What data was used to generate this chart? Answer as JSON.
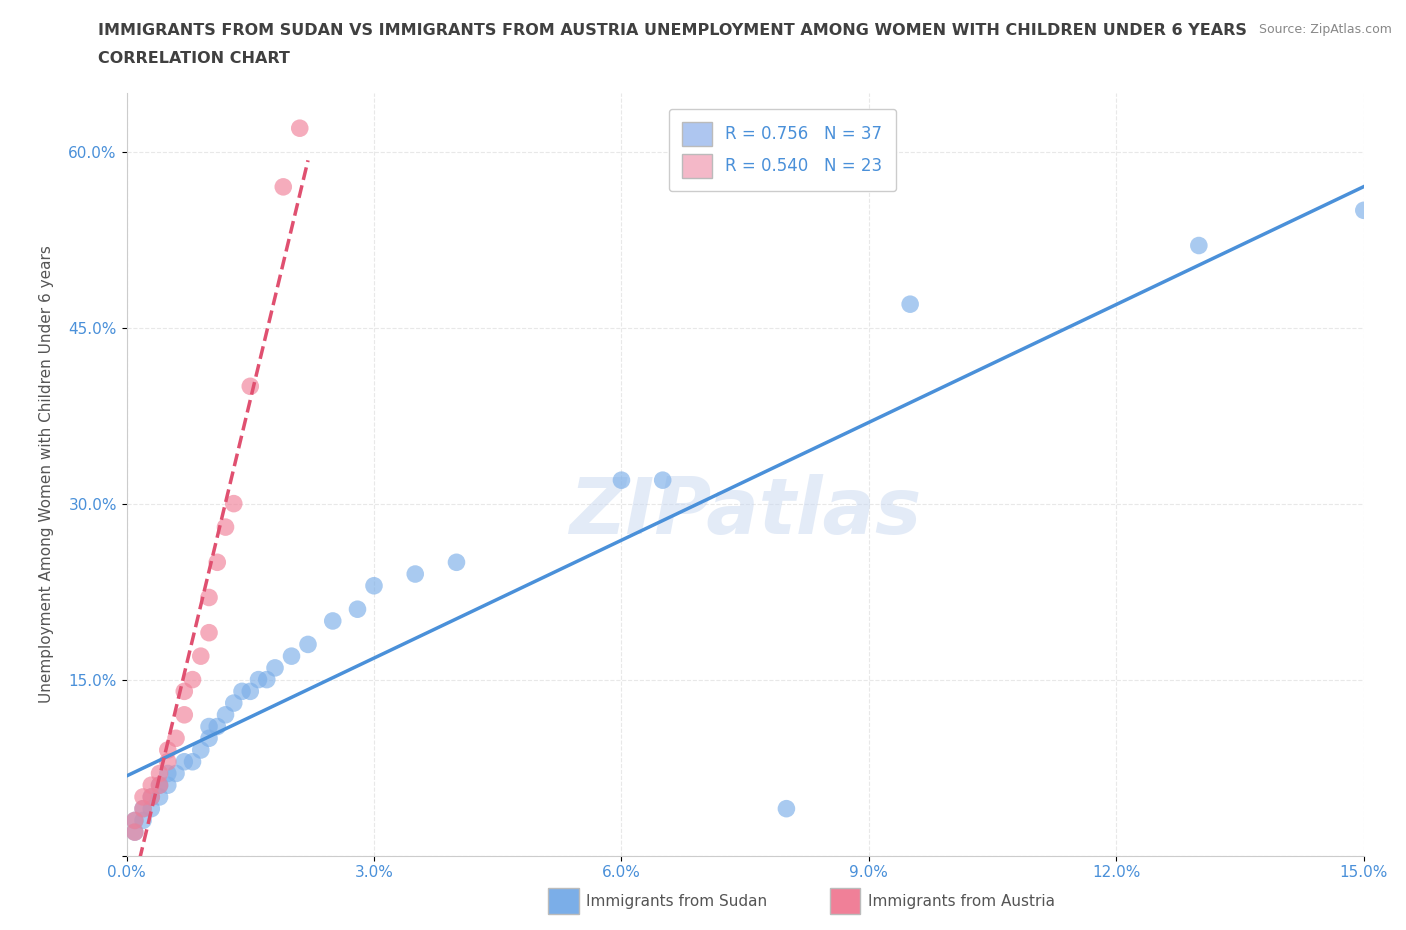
{
  "title_line1": "IMMIGRANTS FROM SUDAN VS IMMIGRANTS FROM AUSTRIA UNEMPLOYMENT AMONG WOMEN WITH CHILDREN UNDER 6 YEARS",
  "title_line2": "CORRELATION CHART",
  "source": "Source: ZipAtlas.com",
  "xlabel": "",
  "ylabel": "Unemployment Among Women with Children Under 6 years",
  "xlim": [
    0.0,
    0.15
  ],
  "ylim": [
    0.0,
    0.65
  ],
  "xticks": [
    0.0,
    0.03,
    0.06,
    0.09,
    0.12,
    0.15
  ],
  "yticks": [
    0.0,
    0.15,
    0.3,
    0.45,
    0.6
  ],
  "xticklabels": [
    "0.0%",
    "3.0%",
    "6.0%",
    "9.0%",
    "12.0%",
    "15.0%"
  ],
  "yticklabels": [
    "",
    "15.0%",
    "30.0%",
    "45.0%",
    "60.0%"
  ],
  "watermark": "ZIPatlas",
  "legend_items": [
    {
      "label": "R = 0.756   N = 37",
      "color": "#aec6f0"
    },
    {
      "label": "R = 0.540   N = 23",
      "color": "#f4b8c8"
    }
  ],
  "sudan_color": "#7baee8",
  "austria_color": "#f08098",
  "sudan_line_color": "#4a90d9",
  "austria_line_color": "#e05070",
  "sudan_R": 0.756,
  "sudan_N": 37,
  "austria_R": 0.54,
  "austria_N": 23,
  "sudan_points": [
    [
      0.001,
      0.02
    ],
    [
      0.001,
      0.03
    ],
    [
      0.002,
      0.03
    ],
    [
      0.002,
      0.04
    ],
    [
      0.003,
      0.04
    ],
    [
      0.003,
      0.05
    ],
    [
      0.004,
      0.05
    ],
    [
      0.004,
      0.06
    ],
    [
      0.005,
      0.06
    ],
    [
      0.005,
      0.07
    ],
    [
      0.006,
      0.07
    ],
    [
      0.007,
      0.08
    ],
    [
      0.008,
      0.08
    ],
    [
      0.009,
      0.09
    ],
    [
      0.01,
      0.1
    ],
    [
      0.01,
      0.11
    ],
    [
      0.011,
      0.11
    ],
    [
      0.012,
      0.12
    ],
    [
      0.013,
      0.13
    ],
    [
      0.014,
      0.14
    ],
    [
      0.015,
      0.14
    ],
    [
      0.016,
      0.15
    ],
    [
      0.017,
      0.15
    ],
    [
      0.018,
      0.16
    ],
    [
      0.02,
      0.17
    ],
    [
      0.022,
      0.18
    ],
    [
      0.025,
      0.2
    ],
    [
      0.028,
      0.21
    ],
    [
      0.03,
      0.23
    ],
    [
      0.035,
      0.24
    ],
    [
      0.04,
      0.25
    ],
    [
      0.06,
      0.32
    ],
    [
      0.065,
      0.32
    ],
    [
      0.08,
      0.04
    ],
    [
      0.095,
      0.47
    ],
    [
      0.13,
      0.52
    ],
    [
      0.15,
      0.55
    ]
  ],
  "austria_points": [
    [
      0.001,
      0.02
    ],
    [
      0.001,
      0.03
    ],
    [
      0.002,
      0.04
    ],
    [
      0.002,
      0.05
    ],
    [
      0.003,
      0.05
    ],
    [
      0.003,
      0.06
    ],
    [
      0.004,
      0.06
    ],
    [
      0.004,
      0.07
    ],
    [
      0.005,
      0.08
    ],
    [
      0.005,
      0.09
    ],
    [
      0.006,
      0.1
    ],
    [
      0.007,
      0.12
    ],
    [
      0.007,
      0.14
    ],
    [
      0.008,
      0.15
    ],
    [
      0.009,
      0.17
    ],
    [
      0.01,
      0.19
    ],
    [
      0.01,
      0.22
    ],
    [
      0.011,
      0.25
    ],
    [
      0.012,
      0.28
    ],
    [
      0.013,
      0.3
    ],
    [
      0.015,
      0.4
    ],
    [
      0.019,
      0.57
    ],
    [
      0.021,
      0.62
    ]
  ],
  "background_color": "#ffffff",
  "grid_color": "#e8e8e8",
  "title_color": "#404040",
  "axis_color": "#555555",
  "tick_color": "#4a90d9"
}
